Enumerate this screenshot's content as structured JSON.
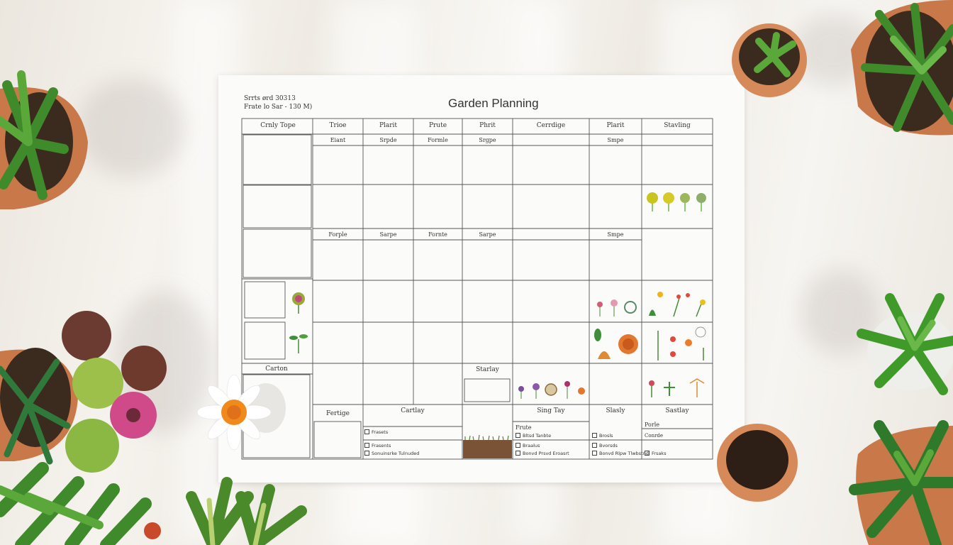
{
  "planner": {
    "meta_line1": "Srrts ørd 30313",
    "meta_line2": "Frate lo Sar - 130 M)",
    "title": "Garden Planning",
    "headers": [
      "Crnly Tope",
      "Trioe",
      "Plarit",
      "Prute",
      "Phrit",
      "Cerrdige",
      "Plarit",
      "Stavling"
    ],
    "subheaders_row1": [
      "Eiant",
      "Srpde",
      "Formle",
      "Srgpe",
      "",
      "Smpe"
    ],
    "subheaders_row2": [
      "Forple",
      "Sarpe",
      "Fornte",
      "Sarpe",
      "",
      "Smpe"
    ],
    "left_label_carton": "Carton",
    "bottom_labels": {
      "fertige": "Fertige",
      "cartlay": "Cartlay",
      "starlay": "Starlay",
      "sing_day": "Sing Tay",
      "slasly": "Slasly",
      "sastlay": "Sastlay"
    },
    "cartlay_items": [
      "Frasets",
      "Frasents",
      "Sonuinsrke Tulnuded"
    ],
    "singday_head": "Frute",
    "singday_items": [
      "Bltsd Tanbte",
      "Braalus",
      "Bonvd Prsvd Eroasrt"
    ],
    "slasly_items": [
      "Brosls",
      "Bvorsds",
      "Bonvd Rlpw Tlwbstnd"
    ],
    "sastlay_head": "Porle",
    "sastlay_sub": "Conrde",
    "sastlay_items": [
      "Frsaks"
    ]
  }
}
